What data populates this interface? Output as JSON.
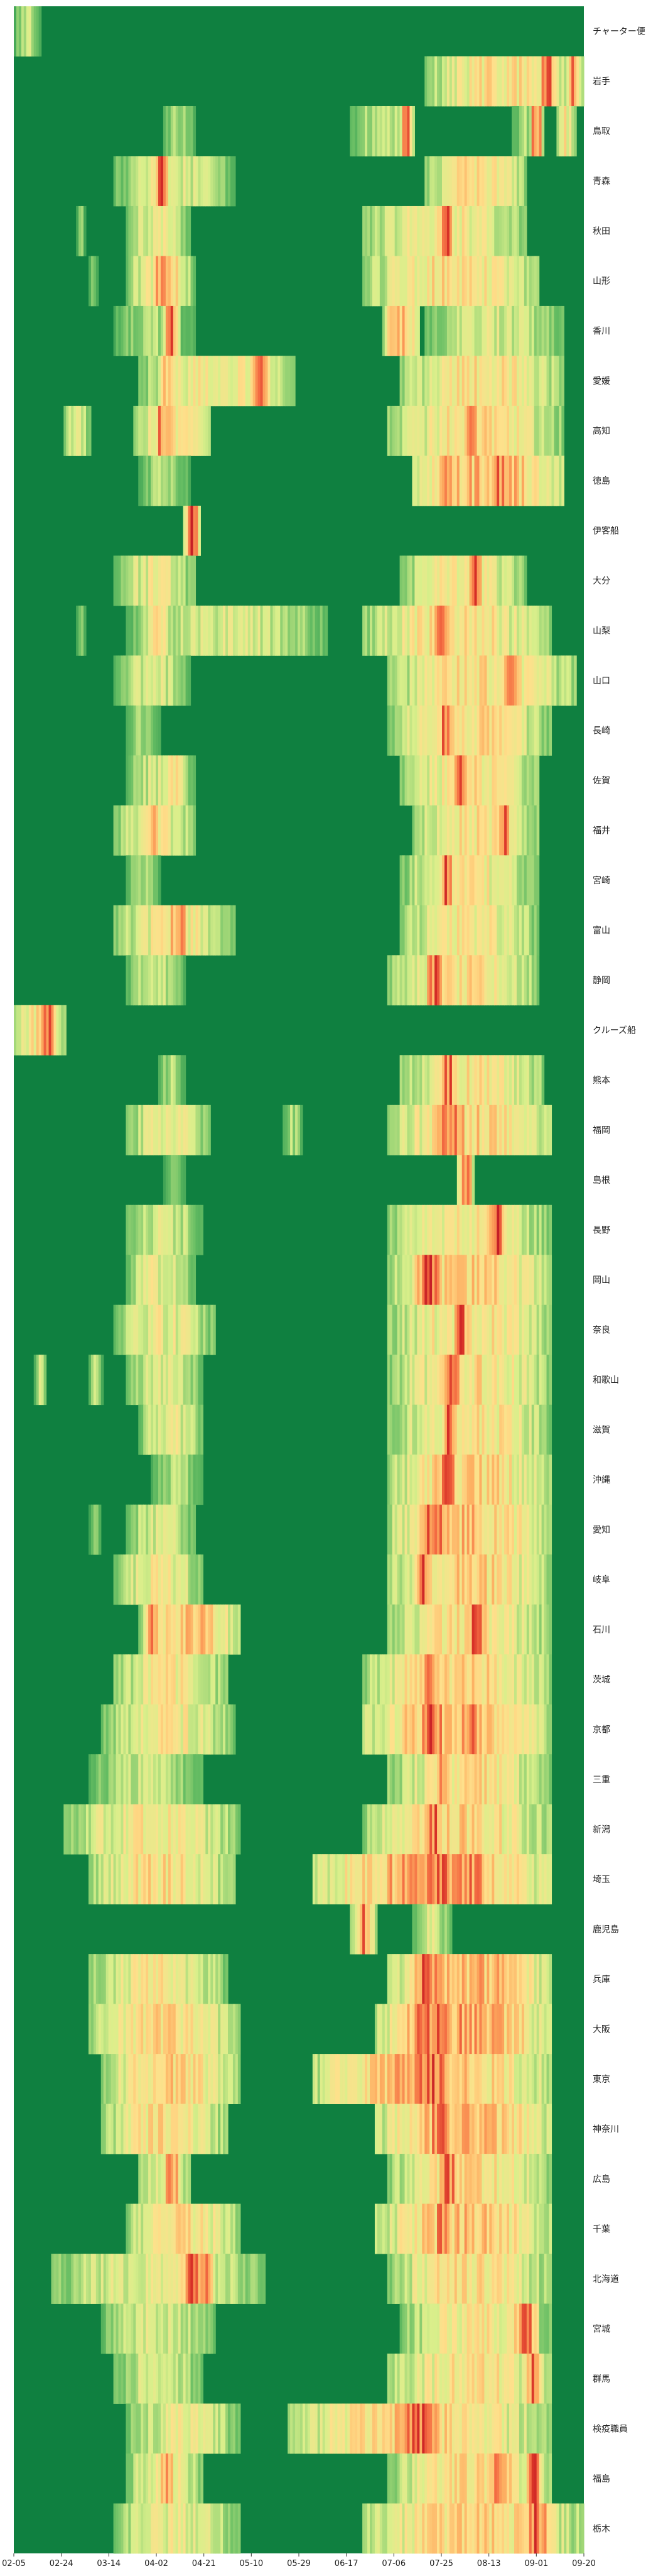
{
  "chart_data": {
    "type": "heatmap",
    "title": "",
    "xlabel": "",
    "ylabel": "",
    "x_start": "2020-02-05",
    "x_end": "2020-09-20",
    "x_tick_labels": [
      "02-05",
      "02-24",
      "03-14",
      "04-02",
      "04-21",
      "05-10",
      "05-29",
      "06-17",
      "07-06",
      "07-25",
      "08-13",
      "09-01",
      "09-20"
    ],
    "colormap": [
      "#1a8a47",
      "#66bd63",
      "#d9ef8b",
      "#fee08b",
      "#fdae61",
      "#f46d43",
      "#d73027",
      "#b50f26"
    ],
    "base_color": "#0f8040",
    "rows": [
      {
        "label": "チャーター便",
        "active": [
          [
            0,
            10,
            0.35
          ]
        ]
      },
      {
        "label": "岩手",
        "active": [
          [
            165,
            228,
            0.55
          ],
          [
            210,
            218,
            0.9
          ],
          [
            221,
            227,
            0.8
          ]
        ]
      },
      {
        "label": "鳥取",
        "active": [
          [
            60,
            72,
            0.3
          ],
          [
            135,
            160,
            0.35
          ],
          [
            155,
            160,
            0.95
          ],
          [
            200,
            212,
            0.3
          ],
          [
            207,
            212,
            0.95
          ],
          [
            218,
            225,
            0.5
          ]
        ]
      },
      {
        "label": "青森",
        "active": [
          [
            40,
            88,
            0.4
          ],
          [
            55,
            62,
            0.95
          ],
          [
            165,
            205,
            0.55
          ]
        ]
      },
      {
        "label": "秋田",
        "active": [
          [
            25,
            28,
            0.25
          ],
          [
            45,
            70,
            0.45
          ],
          [
            140,
            205,
            0.5
          ],
          [
            170,
            176,
            0.95
          ]
        ]
      },
      {
        "label": "山形",
        "active": [
          [
            30,
            33,
            0.25
          ],
          [
            45,
            72,
            0.5
          ],
          [
            55,
            66,
            0.9
          ],
          [
            140,
            210,
            0.55
          ]
        ]
      },
      {
        "label": "香川",
        "active": [
          [
            40,
            72,
            0.3
          ],
          [
            60,
            66,
            0.95
          ],
          [
            148,
            162,
            0.7
          ],
          [
            165,
            220,
            0.4
          ]
        ]
      },
      {
        "label": "愛媛",
        "active": [
          [
            50,
            112,
            0.5
          ],
          [
            58,
            66,
            0.7
          ],
          [
            94,
            102,
            0.95
          ],
          [
            155,
            220,
            0.55
          ]
        ]
      },
      {
        "label": "高知",
        "active": [
          [
            20,
            30,
            0.4
          ],
          [
            48,
            78,
            0.55
          ],
          [
            56,
            62,
            0.85
          ],
          [
            150,
            220,
            0.55
          ],
          [
            180,
            188,
            0.85
          ]
        ]
      },
      {
        "label": "徳島",
        "active": [
          [
            50,
            70,
            0.3
          ],
          [
            160,
            220,
            0.7
          ],
          [
            170,
            176,
            0.95
          ],
          [
            190,
            200,
            0.9
          ]
        ]
      },
      {
        "label": "伊客船",
        "active": [
          [
            68,
            74,
            0.95
          ]
        ]
      },
      {
        "label": "大分",
        "active": [
          [
            40,
            72,
            0.45
          ],
          [
            155,
            205,
            0.5
          ],
          [
            182,
            188,
            0.95
          ]
        ]
      },
      {
        "label": "山梨",
        "active": [
          [
            25,
            28,
            0.25
          ],
          [
            45,
            125,
            0.4
          ],
          [
            52,
            62,
            0.65
          ],
          [
            140,
            215,
            0.55
          ],
          [
            168,
            174,
            0.9
          ]
        ]
      },
      {
        "label": "山口",
        "active": [
          [
            40,
            70,
            0.4
          ],
          [
            150,
            225,
            0.55
          ],
          [
            195,
            203,
            0.95
          ]
        ]
      },
      {
        "label": "長崎",
        "active": [
          [
            45,
            58,
            0.3
          ],
          [
            150,
            215,
            0.55
          ],
          [
            170,
            176,
            0.9
          ]
        ]
      },
      {
        "label": "佐賀",
        "active": [
          [
            45,
            72,
            0.4
          ],
          [
            60,
            68,
            0.6
          ],
          [
            155,
            210,
            0.55
          ],
          [
            176,
            182,
            0.95
          ]
        ]
      },
      {
        "label": "福井",
        "active": [
          [
            40,
            72,
            0.5
          ],
          [
            52,
            58,
            0.75
          ],
          [
            160,
            210,
            0.55
          ],
          [
            193,
            199,
            0.95
          ]
        ]
      },
      {
        "label": "宮崎",
        "active": [
          [
            45,
            58,
            0.3
          ],
          [
            155,
            210,
            0.5
          ],
          [
            171,
            176,
            0.95
          ]
        ]
      },
      {
        "label": "富山",
        "active": [
          [
            40,
            88,
            0.5
          ],
          [
            62,
            70,
            0.95
          ],
          [
            155,
            210,
            0.5
          ]
        ]
      },
      {
        "label": "静岡",
        "active": [
          [
            45,
            68,
            0.35
          ],
          [
            150,
            210,
            0.55
          ],
          [
            165,
            172,
            0.95
          ]
        ]
      },
      {
        "label": "クルーズ船",
        "active": [
          [
            0,
            20,
            0.55
          ],
          [
            10,
            17,
            0.9
          ]
        ]
      },
      {
        "label": "熊本",
        "active": [
          [
            58,
            68,
            0.3
          ],
          [
            155,
            212,
            0.55
          ],
          [
            170,
            178,
            0.95
          ]
        ]
      },
      {
        "label": "福岡",
        "active": [
          [
            45,
            78,
            0.45
          ],
          [
            108,
            115,
            0.3
          ],
          [
            150,
            215,
            0.6
          ],
          [
            168,
            182,
            0.95
          ]
        ]
      },
      {
        "label": "島根",
        "active": [
          [
            60,
            68,
            0.25
          ],
          [
            178,
            184,
            0.95
          ]
        ]
      },
      {
        "label": "長野",
        "active": [
          [
            45,
            75,
            0.4
          ],
          [
            150,
            215,
            0.5
          ],
          [
            190,
            198,
            0.95
          ]
        ]
      },
      {
        "label": "岡山",
        "active": [
          [
            45,
            72,
            0.45
          ],
          [
            150,
            215,
            0.6
          ],
          [
            160,
            172,
            0.95
          ]
        ]
      },
      {
        "label": "奈良",
        "active": [
          [
            40,
            80,
            0.45
          ],
          [
            150,
            215,
            0.55
          ],
          [
            176,
            182,
            0.95
          ]
        ]
      },
      {
        "label": "和歌山",
        "active": [
          [
            8,
            12,
            0.4
          ],
          [
            30,
            35,
            0.3
          ],
          [
            45,
            75,
            0.4
          ],
          [
            150,
            215,
            0.55
          ],
          [
            172,
            180,
            0.95
          ]
        ]
      },
      {
        "label": "滋賀",
        "active": [
          [
            50,
            75,
            0.45
          ],
          [
            150,
            215,
            0.55
          ],
          [
            172,
            178,
            0.95
          ]
        ]
      },
      {
        "label": "沖縄",
        "active": [
          [
            55,
            75,
            0.3
          ],
          [
            150,
            215,
            0.6
          ],
          [
            168,
            178,
            0.95
          ]
        ]
      },
      {
        "label": "愛知",
        "active": [
          [
            30,
            34,
            0.25
          ],
          [
            45,
            72,
            0.4
          ],
          [
            150,
            215,
            0.65
          ],
          [
            162,
            176,
            0.95
          ]
        ]
      },
      {
        "label": "岐阜",
        "active": [
          [
            40,
            75,
            0.5
          ],
          [
            150,
            215,
            0.6
          ],
          [
            160,
            168,
            0.95
          ]
        ]
      },
      {
        "label": "石川",
        "active": [
          [
            50,
            90,
            0.65
          ],
          [
            52,
            58,
            0.85
          ],
          [
            150,
            215,
            0.55
          ],
          [
            180,
            190,
            0.95
          ]
        ]
      },
      {
        "label": "茨城",
        "active": [
          [
            40,
            85,
            0.5
          ],
          [
            140,
            215,
            0.6
          ],
          [
            163,
            172,
            0.95
          ]
        ]
      },
      {
        "label": "京都",
        "active": [
          [
            35,
            88,
            0.5
          ],
          [
            140,
            215,
            0.7
          ],
          [
            160,
            174,
            0.95
          ],
          [
            182,
            188,
            0.9
          ]
        ]
      },
      {
        "label": "三重",
        "active": [
          [
            30,
            75,
            0.35
          ],
          [
            150,
            215,
            0.55
          ],
          [
            168,
            176,
            0.95
          ]
        ]
      },
      {
        "label": "新潟",
        "active": [
          [
            20,
            90,
            0.5
          ],
          [
            140,
            215,
            0.6
          ],
          [
            165,
            172,
            0.9
          ]
        ]
      },
      {
        "label": "埼玉",
        "active": [
          [
            30,
            88,
            0.55
          ],
          [
            120,
            215,
            0.75
          ],
          [
            150,
            200,
            0.85
          ],
          [
            165,
            172,
            0.95
          ]
        ]
      },
      {
        "label": "鹿児島",
        "active": [
          [
            135,
            145,
            0.6
          ],
          [
            138,
            141,
            0.95
          ],
          [
            160,
            175,
            0.4
          ]
        ]
      },
      {
        "label": "兵庫",
        "active": [
          [
            30,
            85,
            0.5
          ],
          [
            150,
            215,
            0.7
          ],
          [
            158,
            176,
            0.95
          ]
        ]
      },
      {
        "label": "大阪",
        "active": [
          [
            30,
            90,
            0.55
          ],
          [
            145,
            215,
            0.75
          ],
          [
            155,
            178,
            0.95
          ]
        ]
      },
      {
        "label": "東京",
        "active": [
          [
            35,
            90,
            0.6
          ],
          [
            120,
            215,
            0.7
          ],
          [
            150,
            180,
            0.8
          ],
          [
            158,
            176,
            0.95
          ]
        ]
      },
      {
        "label": "神奈川",
        "active": [
          [
            35,
            85,
            0.55
          ],
          [
            145,
            215,
            0.7
          ],
          [
            165,
            178,
            0.95
          ]
        ]
      },
      {
        "label": "広島",
        "active": [
          [
            50,
            70,
            0.5
          ],
          [
            60,
            66,
            0.9
          ],
          [
            150,
            215,
            0.55
          ],
          [
            170,
            180,
            0.95
          ]
        ]
      },
      {
        "label": "千葉",
        "active": [
          [
            45,
            90,
            0.55
          ],
          [
            145,
            215,
            0.65
          ],
          [
            168,
            176,
            0.95
          ]
        ]
      },
      {
        "label": "北海道",
        "active": [
          [
            15,
            100,
            0.45
          ],
          [
            65,
            80,
            0.95
          ],
          [
            150,
            215,
            0.55
          ]
        ]
      },
      {
        "label": "宮城",
        "active": [
          [
            35,
            80,
            0.4
          ],
          [
            155,
            215,
            0.5
          ],
          [
            200,
            210,
            0.95
          ]
        ]
      },
      {
        "label": "群馬",
        "active": [
          [
            40,
            75,
            0.4
          ],
          [
            150,
            215,
            0.55
          ],
          [
            205,
            212,
            0.95
          ]
        ]
      },
      {
        "label": "検疫職員",
        "active": [
          [
            45,
            90,
            0.45
          ],
          [
            110,
            215,
            0.6
          ],
          [
            150,
            172,
            0.95
          ]
        ]
      },
      {
        "label": "福島",
        "active": [
          [
            45,
            75,
            0.5
          ],
          [
            58,
            64,
            0.8
          ],
          [
            150,
            215,
            0.55
          ],
          [
            190,
            200,
            0.9
          ],
          [
            205,
            212,
            0.9
          ]
        ]
      },
      {
        "label": "栃木",
        "active": [
          [
            40,
            90,
            0.45
          ],
          [
            140,
            228,
            0.6
          ],
          [
            205,
            215,
            0.95
          ]
        ]
      }
    ]
  }
}
